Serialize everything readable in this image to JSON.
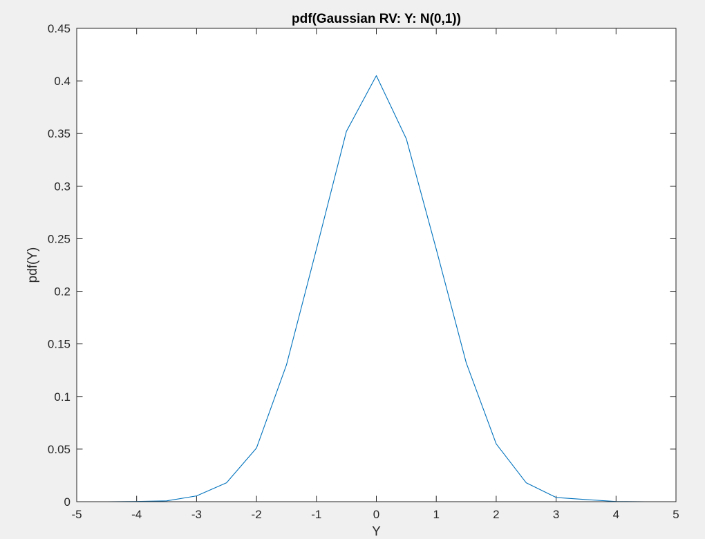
{
  "chart_data": {
    "type": "line",
    "title": "pdf(Gaussian RV: Y: N(0,1))",
    "xlabel": "Y",
    "ylabel": "pdf(Y)",
    "xlim": [
      -5,
      5
    ],
    "ylim": [
      0,
      0.45
    ],
    "xticks": [
      -5,
      -4,
      -3,
      -2,
      -1,
      0,
      1,
      2,
      3,
      4,
      5
    ],
    "xtick_labels": [
      "-5",
      "-4",
      "-3",
      "-2",
      "-1",
      "0",
      "1",
      "2",
      "3",
      "4",
      "5"
    ],
    "yticks": [
      0,
      0.05,
      0.1,
      0.15,
      0.2,
      0.25,
      0.3,
      0.35,
      0.4,
      0.45
    ],
    "ytick_labels": [
      "0",
      "0.05",
      "0.1",
      "0.15",
      "0.2",
      "0.25",
      "0.3",
      "0.35",
      "0.4",
      "0.45"
    ],
    "grid": false,
    "series": [
      {
        "color": "#0072bd",
        "x": [
          -5,
          -4.5,
          -4,
          -3.5,
          -3,
          -2.5,
          -2,
          -1.5,
          -1,
          -0.5,
          0,
          0.5,
          1,
          1.5,
          2,
          2.5,
          3,
          3.5,
          4,
          4.5,
          5
        ],
        "y": [
          0,
          0,
          0.0002,
          0.0008,
          0.0055,
          0.018,
          0.051,
          0.13,
          0.24,
          0.352,
          0.405,
          0.345,
          0.24,
          0.132,
          0.055,
          0.018,
          0.004,
          0.002,
          0.0002,
          0,
          0
        ]
      }
    ]
  }
}
